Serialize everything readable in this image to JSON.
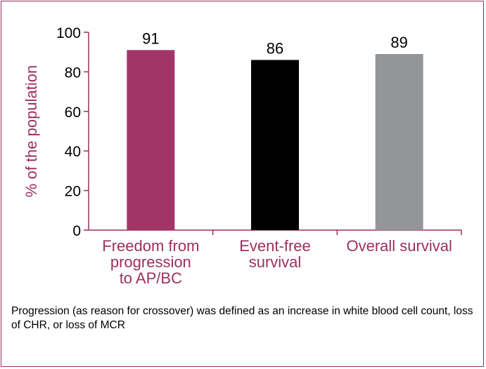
{
  "chart_data": {
    "type": "bar",
    "categories": [
      [
        "Freedom from",
        "progression",
        "to AP/BC"
      ],
      [
        "Event-free",
        "survival"
      ],
      [
        "Overall survival"
      ]
    ],
    "values": [
      91,
      86,
      89
    ],
    "data_labels": [
      "91",
      "86",
      "89"
    ],
    "colors": [
      "#a33467",
      "#000000",
      "#939598"
    ],
    "ylabel": "% of the population",
    "ylim": [
      0,
      100
    ],
    "yticks": [
      0,
      20,
      40,
      60,
      80,
      100
    ],
    "grid": false,
    "axis_color": "#9c2f5e"
  },
  "footnote": "Progression (as reason for crossover) was defined as an increase in white blood cell count, loss of CHR, or loss of MCR"
}
